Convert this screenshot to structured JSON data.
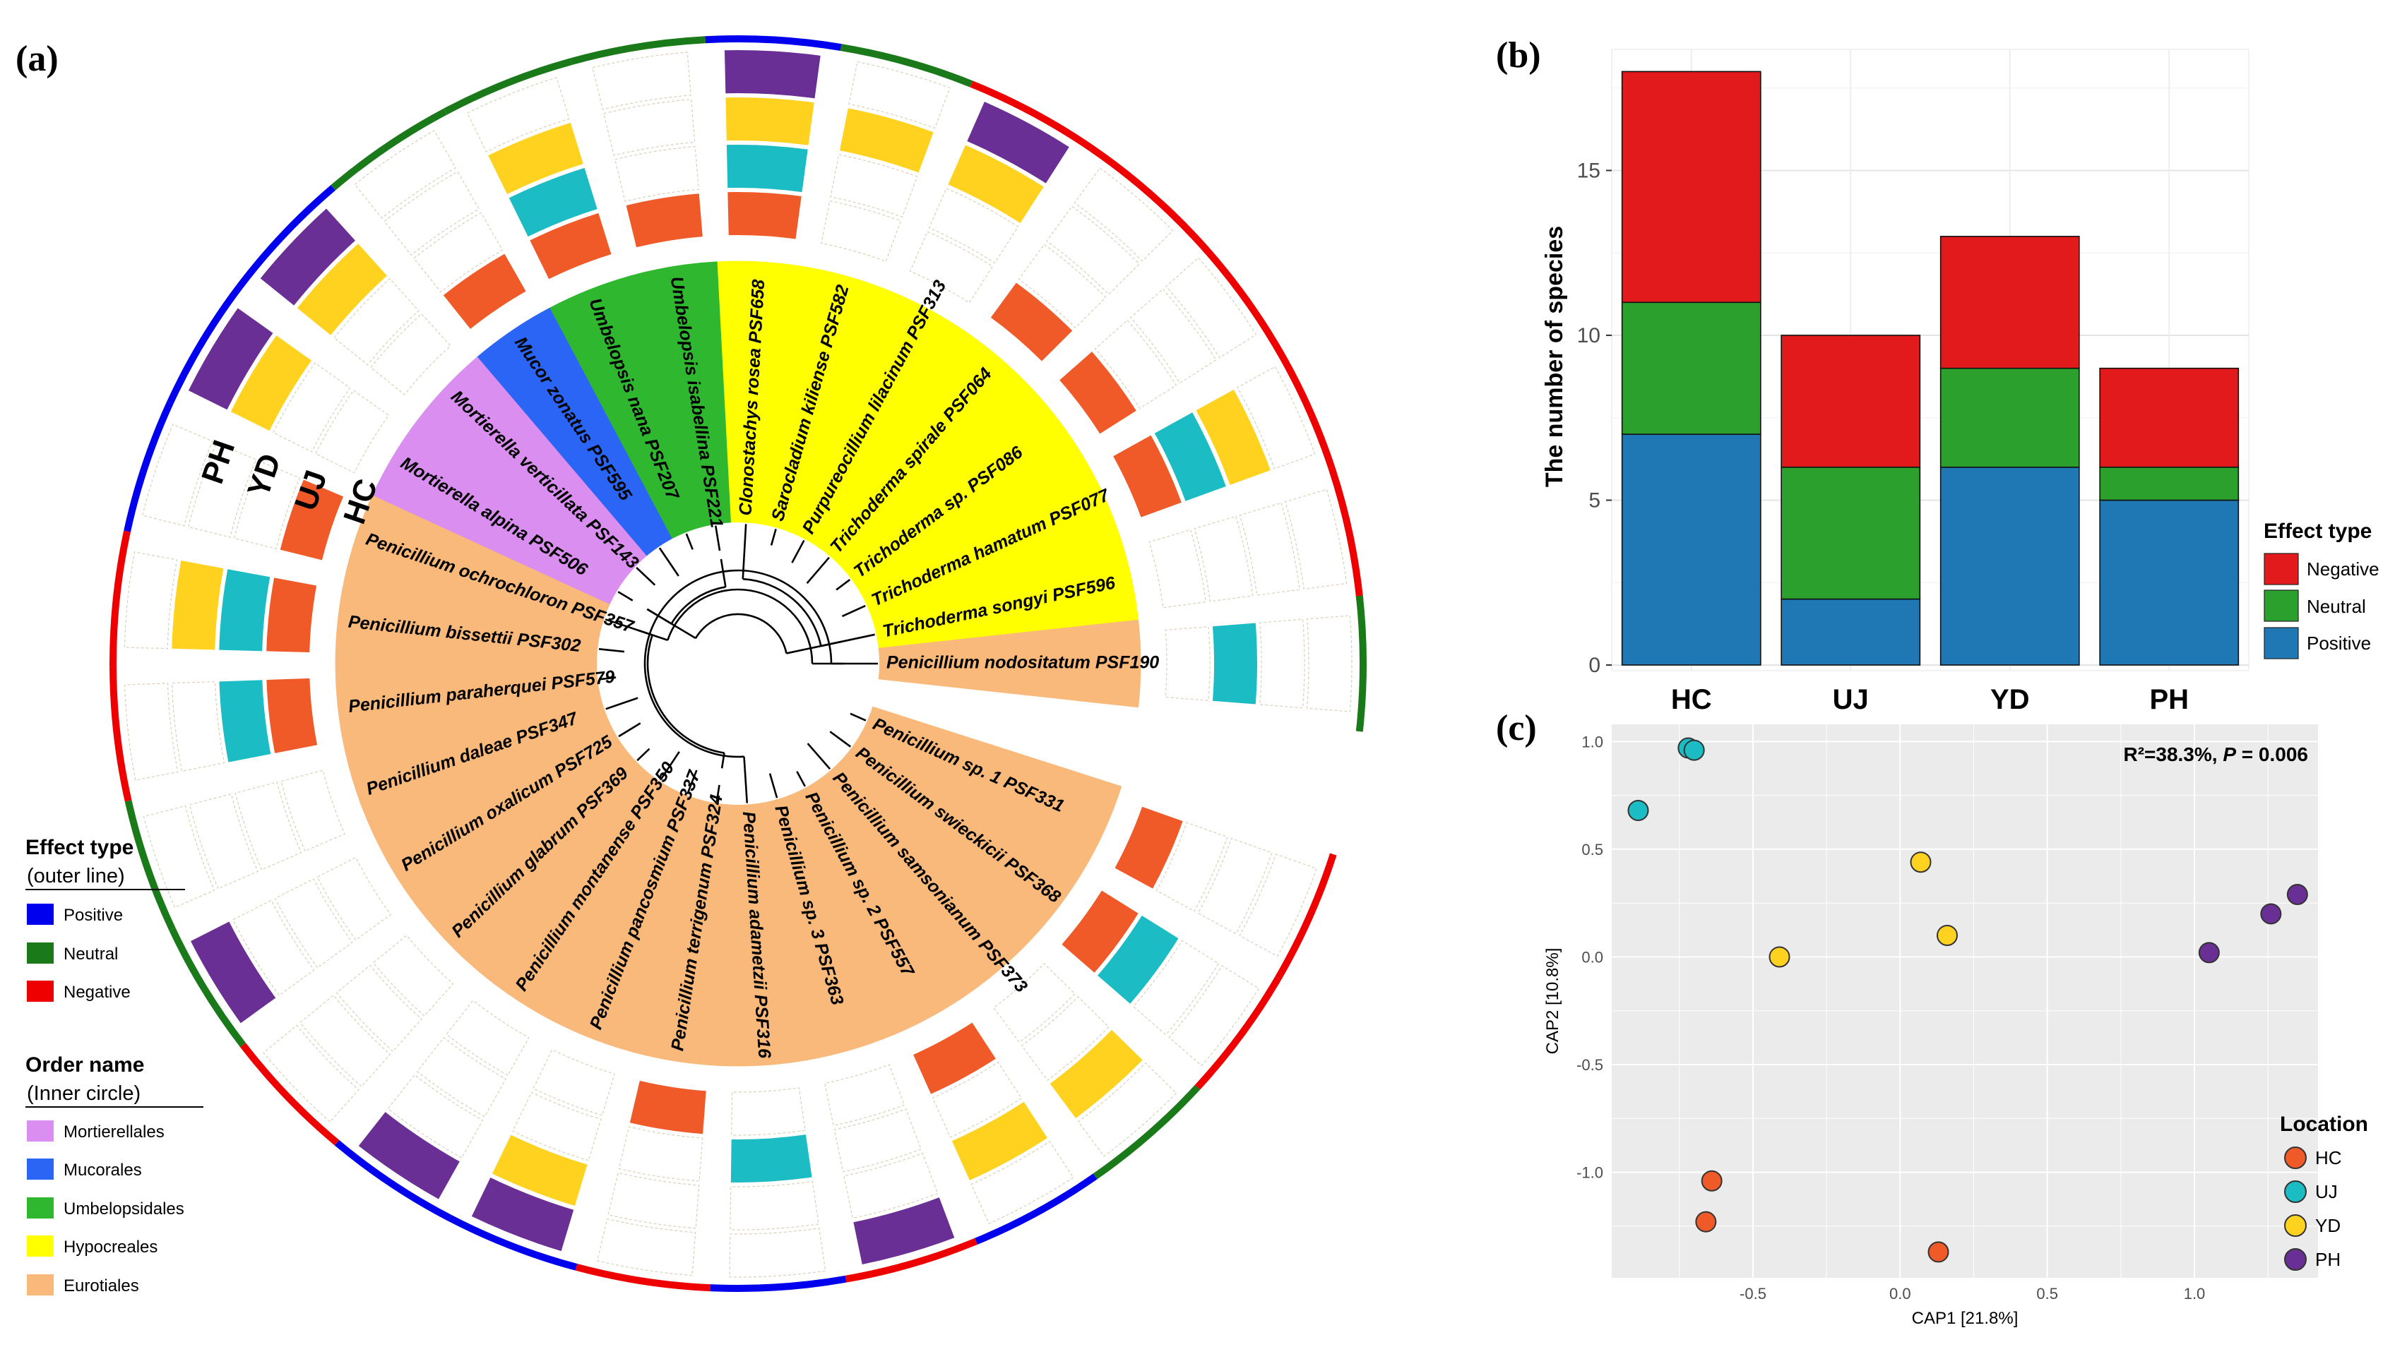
{
  "panels": {
    "a": "(a)",
    "b": "(b)",
    "c": "(c)"
  },
  "colors": {
    "positive": "#1f77b4",
    "neutral": "#2ca02c",
    "negative": "#e31a1c",
    "outer_positive": "#0000ee",
    "outer_neutral": "#1a7a1a",
    "outer_negative": "#ee0000",
    "HC": "#f05a28",
    "UJ": "#1cbcc4",
    "YD": "#ffd21f",
    "PH": "#6a2f94",
    "Mortierellales": "#d98ef0",
    "Mucorales": "#2b65f5",
    "Umbelopsidales": "#2fb82f",
    "Hypocreales": "#ffff00",
    "Eurotiales": "#f9b97a"
  },
  "tree": {
    "ring_locations": [
      "HC",
      "UJ",
      "YD",
      "PH"
    ],
    "species": [
      {
        "name": "Trichoderma songyi PSF596",
        "order": "Hypocreales",
        "effect": "Negative",
        "present": []
      },
      {
        "name": "Trichoderma hamatum PSF077",
        "order": "Hypocreales",
        "effect": "Negative",
        "present": [
          "HC",
          "UJ",
          "YD"
        ]
      },
      {
        "name": "Trichoderma sp. PSF086",
        "order": "Hypocreales",
        "effect": "Negative",
        "present": [
          "HC"
        ]
      },
      {
        "name": "Trichoderma spirale PSF064",
        "order": "Hypocreales",
        "effect": "Negative",
        "present": [
          "HC"
        ]
      },
      {
        "name": "Purpureocillium lilacinum PSF313",
        "order": "Hypocreales",
        "effect": "Negative",
        "present": [
          "YD",
          "PH"
        ]
      },
      {
        "name": "Sarocladium kiliense PSF582",
        "order": "Hypocreales",
        "effect": "Neutral",
        "present": [
          "YD"
        ]
      },
      {
        "name": "Clonostachys rosea PSF658",
        "order": "Hypocreales",
        "effect": "Positive",
        "present": [
          "HC",
          "UJ",
          "YD",
          "PH"
        ]
      },
      {
        "name": "Umbelopsis isabellina PSF221",
        "order": "Umbelopsidales",
        "effect": "Neutral",
        "present": [
          "HC"
        ]
      },
      {
        "name": "Umbelopsis nana PSF207",
        "order": "Umbelopsidales",
        "effect": "Neutral",
        "present": [
          "HC",
          "UJ",
          "YD"
        ]
      },
      {
        "name": "Mucor zonatus PSF595",
        "order": "Mucorales",
        "effect": "Neutral",
        "present": [
          "HC"
        ]
      },
      {
        "name": "Mortierella verticillata PSF143",
        "order": "Mortierellales",
        "effect": "Positive",
        "present": [
          "YD",
          "PH"
        ]
      },
      {
        "name": "Mortierella alpina PSF506",
        "order": "Mortierellales",
        "effect": "Positive",
        "present": [
          "PH",
          "YD"
        ]
      },
      {
        "name": "Penicillium ochrochloron PSF357",
        "order": "Eurotiales",
        "effect": "Positive",
        "present": [
          "HC"
        ]
      },
      {
        "name": "Penicillium bissettii PSF302",
        "order": "Eurotiales",
        "effect": "Negative",
        "present": [
          "HC",
          "UJ",
          "YD"
        ]
      },
      {
        "name": "Penicillium paraherquei PSF579",
        "order": "Eurotiales",
        "effect": "Negative",
        "present": [
          "HC",
          "UJ"
        ]
      },
      {
        "name": "Penicillium daleae PSF347",
        "order": "Eurotiales",
        "effect": "Neutral",
        "present": []
      },
      {
        "name": "Penicillium oxalicum PSF725",
        "order": "Eurotiales",
        "effect": "Neutral",
        "present": [
          "PH"
        ]
      },
      {
        "name": "Penicillium glabrum PSF369",
        "order": "Eurotiales",
        "effect": "Negative",
        "present": []
      },
      {
        "name": "Penicillium montanense PSF350",
        "order": "Eurotiales",
        "effect": "Positive",
        "present": [
          "PH"
        ]
      },
      {
        "name": "Penicillium pancosmium PSF337",
        "order": "Eurotiales",
        "effect": "Positive",
        "present": [
          "PH",
          "YD"
        ]
      },
      {
        "name": "Penicillium terrigenum PSF324",
        "order": "Eurotiales",
        "effect": "Negative",
        "present": [
          "HC"
        ]
      },
      {
        "name": "Penicillium adametzii PSF316",
        "order": "Eurotiales",
        "effect": "Positive",
        "present": [
          "UJ"
        ]
      },
      {
        "name": "Penicillium sp. 3 PSF363",
        "order": "Eurotiales",
        "effect": "Negative",
        "present": [
          "PH"
        ]
      },
      {
        "name": "Penicillium sp. 2 PSF557",
        "order": "Eurotiales",
        "effect": "Positive",
        "present": [
          "HC",
          "YD"
        ]
      },
      {
        "name": "Penicillium samsonianum PSF373",
        "order": "Eurotiales",
        "effect": "Neutral",
        "present": [
          "YD"
        ]
      },
      {
        "name": "Penicillium swieckicii PSF368",
        "order": "Eurotiales",
        "effect": "Negative",
        "present": [
          "HC",
          "UJ"
        ]
      },
      {
        "name": "Penicillium sp. 1 PSF331",
        "order": "Eurotiales",
        "effect": "Negative",
        "present": [
          "HC"
        ]
      },
      {
        "name": "Penicillium nodositatum PSF190",
        "order": "Eurotiales",
        "effect": "Neutral",
        "present": [
          "UJ"
        ]
      }
    ],
    "legend_effect": {
      "title": "Effect type",
      "subtitle": "(outer line)",
      "items": [
        "Positive",
        "Neutral",
        "Negative"
      ]
    },
    "legend_order": {
      "title": "Order name",
      "subtitle": "(Inner circle)",
      "items": [
        "Mortierellales",
        "Mucorales",
        "Umbelopsidales",
        "Hypocreales",
        "Eurotiales"
      ]
    }
  },
  "chart_data": [
    {
      "type": "bar",
      "stacked": true,
      "title": "",
      "categories": [
        "HC",
        "UJ",
        "YD",
        "PH"
      ],
      "series": [
        {
          "name": "Positive",
          "values": [
            7,
            2,
            6,
            5
          ]
        },
        {
          "name": "Neutral",
          "values": [
            4,
            4,
            3,
            1
          ]
        },
        {
          "name": "Negative",
          "values": [
            7,
            4,
            4,
            3
          ]
        }
      ],
      "xlabel": "",
      "ylabel": "The number of species",
      "ylim": [
        0,
        18.5
      ],
      "yticks": [
        0,
        5,
        10,
        15
      ],
      "legend": {
        "title": "Effect type",
        "items": [
          "Negative",
          "Neutral",
          "Positive"
        ],
        "position": "right"
      }
    },
    {
      "type": "scatter",
      "xlabel": "CAP1  [21.8%]",
      "ylabel": "CAP2  [10.8%]",
      "xlim": [
        -0.98,
        1.42
      ],
      "ylim": [
        -1.49,
        1.08
      ],
      "xticks": [
        -0.5,
        0.0,
        0.5,
        1.0
      ],
      "xtick_labels": [
        "-0.5",
        "0.0",
        "0.5",
        "1.0"
      ],
      "yticks": [
        1.0,
        0.5,
        0.0,
        -0.5,
        -1.0
      ],
      "ytick_labels": [
        "1.0",
        "0.5",
        "0.0",
        "-0.5",
        "-1.0"
      ],
      "annotation_r2": "R²=38.3%, ",
      "annotation_p": "P",
      "annotation_pval": " = 0.006",
      "series": [
        {
          "name": "HC",
          "points": [
            [
              -0.64,
              -1.04
            ],
            [
              -0.66,
              -1.23
            ],
            [
              0.13,
              -1.37
            ]
          ]
        },
        {
          "name": "UJ",
          "points": [
            [
              -0.72,
              0.97
            ],
            [
              -0.7,
              0.96
            ],
            [
              -0.89,
              0.68
            ]
          ]
        },
        {
          "name": "YD",
          "points": [
            [
              0.07,
              0.44
            ],
            [
              0.16,
              0.1
            ],
            [
              -0.41,
              0.0
            ]
          ]
        },
        {
          "name": "PH",
          "points": [
            [
              1.05,
              0.02
            ],
            [
              1.26,
              0.2
            ],
            [
              1.35,
              0.29
            ]
          ]
        }
      ],
      "legend": {
        "title": "Location",
        "items": [
          "HC",
          "UJ",
          "YD",
          "PH"
        ],
        "position": "right"
      }
    }
  ]
}
